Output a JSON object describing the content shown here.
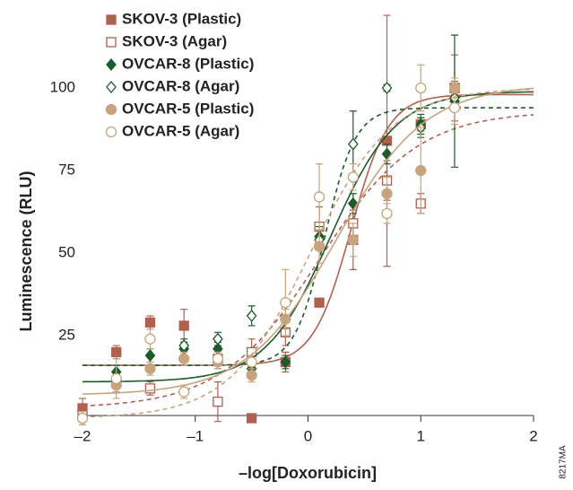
{
  "chart_data": {
    "type": "scatter",
    "xlabel": "–log[Doxorubicin]",
    "ylabel": "Luminescence (RLU)",
    "code": "8217MA",
    "xlim": [
      -2,
      2
    ],
    "ylim": [
      0,
      120
    ],
    "xticks": [
      {
        "value": -2,
        "label": "–2"
      },
      {
        "value": -1,
        "label": "–1"
      },
      0,
      1,
      2
    ],
    "yticks": [
      25,
      50,
      75,
      100
    ],
    "grid": false,
    "legend": "top-left",
    "series": [
      {
        "name": "SKOV-3 (Plastic)",
        "color": "#b0604f",
        "marker": "square",
        "filled": true,
        "line": "solid",
        "x": [
          -2,
          -1.7,
          -1.4,
          -1.1,
          -0.8,
          -0.5,
          -0.2,
          0.1,
          0.4,
          0.7,
          1.0,
          1.3
        ],
        "values": [
          3,
          20,
          29,
          28,
          18,
          0,
          17,
          35,
          54,
          84,
          89,
          100
        ],
        "errors": [
          3,
          2,
          2,
          5,
          3,
          1,
          3,
          1,
          9,
          38,
          2,
          2
        ],
        "fit": {
          "bottom": 16,
          "top": 98,
          "ec50": 0.38,
          "hill": 2.6
        }
      },
      {
        "name": "SKOV-3 (Agar)",
        "color": "#b0604f",
        "marker": "square",
        "filled": false,
        "line": "dashed",
        "x": [
          -2,
          -1.7,
          -1.4,
          -0.8,
          -0.5,
          -0.2,
          0.1,
          0.4,
          0.7,
          1.0,
          1.3
        ],
        "values": [
          1,
          11,
          9,
          5,
          20,
          26,
          58,
          59,
          72,
          65,
          100
        ],
        "errors": [
          2,
          3,
          2,
          6,
          4,
          4,
          6,
          6,
          6,
          3,
          10
        ],
        "fit": {
          "bottom": 3,
          "top": 93,
          "ec50": 0.1,
          "hill": 1.0
        }
      },
      {
        "name": "OVCAR-8 (Plastic)",
        "color": "#1d5a2c",
        "marker": "diamond",
        "filled": true,
        "line": "solid",
        "x": [
          -1.7,
          -1.4,
          -1.1,
          -0.8,
          -0.5,
          -0.2,
          0.1,
          0.4,
          0.7,
          1.0,
          1.3
        ],
        "values": [
          14,
          19,
          21,
          21,
          15,
          17,
          55,
          65,
          80,
          89,
          96
        ],
        "errors": [
          2,
          2,
          2,
          2,
          2,
          2,
          3,
          3,
          3,
          3,
          20
        ],
        "fit": {
          "bottom": 11,
          "top": 99,
          "ec50": 0.2,
          "hill": 1.5
        }
      },
      {
        "name": "OVCAR-8 (Agar)",
        "color": "#1d5a2c",
        "marker": "diamond",
        "filled": false,
        "line": "dashed",
        "x": [
          -1.1,
          -0.8,
          -0.5,
          0.1,
          0.4,
          0.7,
          1.0,
          1.3
        ],
        "values": [
          22,
          24,
          31,
          54,
          83,
          100,
          88,
          97
        ],
        "errors": [
          2,
          2,
          3,
          3,
          10,
          1,
          3,
          4
        ],
        "fit": {
          "bottom": 16,
          "top": 94,
          "ec50": 0.15,
          "hill": 3.2
        }
      },
      {
        "name": "OVCAR-5 (Plastic)",
        "color": "#c6a47e",
        "marker": "circle",
        "filled": true,
        "line": "solid",
        "x": [
          -2,
          -1.7,
          -1.4,
          -1.1,
          -0.8,
          -0.5,
          -0.2,
          0.1,
          0.4,
          0.7,
          1.0,
          1.3
        ],
        "values": [
          0,
          10,
          15,
          18,
          17,
          13,
          30,
          52,
          54,
          68,
          75,
          100
        ],
        "errors": [
          2,
          2,
          2,
          2,
          2,
          2,
          3,
          5,
          5,
          5,
          13,
          3
        ],
        "fit": {
          "bottom": 7,
          "top": 101,
          "ec50": 0.25,
          "hill": 1.1
        }
      },
      {
        "name": "OVCAR-5 (Agar)",
        "color": "#c6a47e",
        "marker": "circle",
        "filled": false,
        "line": "dashed",
        "x": [
          -2,
          -1.7,
          -1.4,
          -1.1,
          -0.8,
          -0.5,
          -0.2,
          0.1,
          0.4,
          0.7,
          1.0,
          1.3
        ],
        "values": [
          0,
          12,
          24,
          8,
          18,
          17,
          35,
          67,
          73,
          62,
          100,
          94
        ],
        "errors": [
          2,
          6,
          3,
          2,
          2,
          2,
          10,
          10,
          4,
          3,
          7,
          5
        ],
        "fit": {
          "bottom": 0,
          "top": 100,
          "ec50": 0.02,
          "hill": 1.2
        }
      }
    ]
  }
}
